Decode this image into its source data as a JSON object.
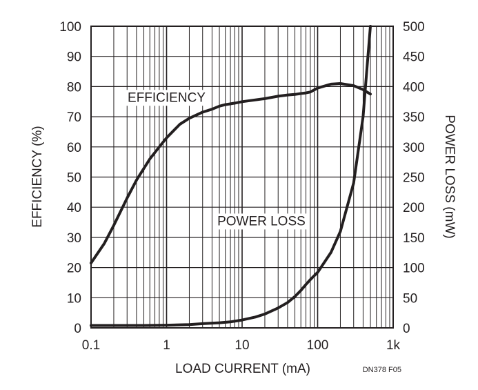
{
  "chart_data": {
    "type": "line",
    "title": "",
    "xlabel": "LOAD CURRENT (mA)",
    "ylabel_left": "EFFICIENCY (%)",
    "ylabel_right": "POWER LOSS (mW)",
    "x_scale": "log",
    "xlim": [
      0.1,
      1000
    ],
    "ylim_left": [
      0,
      100
    ],
    "ylim_right": [
      0,
      500
    ],
    "grid": true,
    "x_ticks": [
      {
        "value": 0.1,
        "label": "0.1"
      },
      {
        "value": 1,
        "label": "1"
      },
      {
        "value": 10,
        "label": "10"
      },
      {
        "value": 100,
        "label": "100"
      },
      {
        "value": 1000,
        "label": "1k"
      }
    ],
    "y_ticks_left": [
      "0",
      "10",
      "20",
      "30",
      "40",
      "50",
      "60",
      "70",
      "80",
      "90",
      "100"
    ],
    "y_ticks_right": [
      "0",
      "50",
      "100",
      "150",
      "200",
      "250",
      "300",
      "350",
      "400",
      "450",
      "500"
    ],
    "series": [
      {
        "name": "EFFICIENCY",
        "axis": "left",
        "x": [
          0.1,
          0.15,
          0.2,
          0.3,
          0.4,
          0.6,
          0.8,
          1,
          1.5,
          2,
          3,
          4,
          5,
          6,
          8,
          10,
          20,
          30,
          40,
          50,
          60,
          70,
          80,
          100,
          150,
          200,
          300,
          400,
          500
        ],
        "y": [
          21.5,
          28,
          34,
          43,
          49,
          56,
          60,
          63,
          67.5,
          69.5,
          71.5,
          72.5,
          73.5,
          74,
          74.5,
          75,
          76,
          76.8,
          77.2,
          77.4,
          77.7,
          77.9,
          78.2,
          79.5,
          80.8,
          81,
          80.3,
          79,
          77.5
        ]
      },
      {
        "name": "POWER LOSS",
        "axis": "right",
        "x": [
          0.1,
          0.2,
          0.5,
          1,
          2,
          3,
          5,
          7,
          10,
          15,
          20,
          30,
          40,
          50,
          60,
          70,
          80,
          100,
          150,
          200,
          300,
          400,
          450,
          500
        ],
        "y": [
          4,
          4,
          4,
          4.5,
          5.5,
          7,
          8.5,
          10,
          13,
          18,
          23,
          33,
          42,
          52,
          62,
          72,
          80,
          92,
          125,
          160,
          240,
          350,
          430,
          500
        ]
      }
    ],
    "annotations": [
      {
        "text": "EFFICIENCY",
        "x": 1,
        "y": 75
      },
      {
        "text": "POWER LOSS",
        "x": 18,
        "y": 34
      }
    ],
    "figure_id": "DN378 F05"
  }
}
